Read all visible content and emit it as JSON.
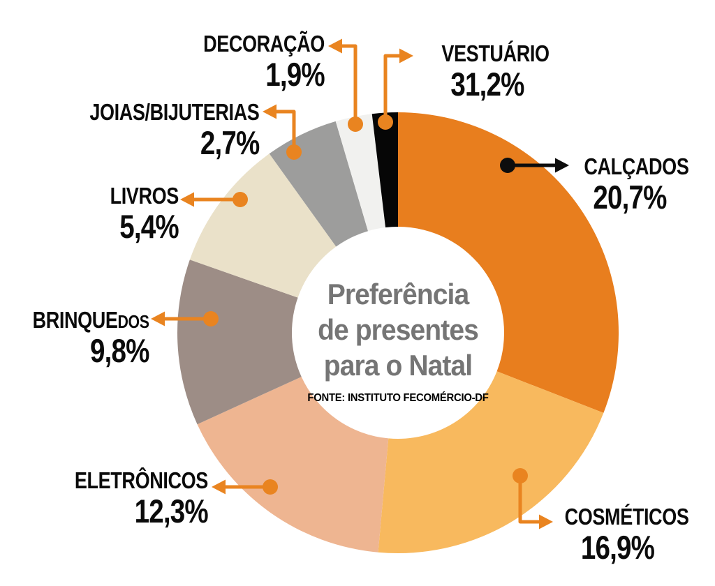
{
  "title": {
    "lines": [
      "Preferência",
      "de presentes",
      "para o Natal"
    ],
    "source": "FONTE: INSTITUTO FECOMÉRCIO-DF"
  },
  "chart_data": {
    "type": "pie",
    "subtype": "donut",
    "title": "Preferência de presentes para o Natal",
    "source": "FONTE: INSTITUTO FECOMÉRCIO-DF",
    "unit": "%",
    "start_angle_deg": 0,
    "direction": "clockwise",
    "segments": [
      {
        "label": "VESTUÁRIO",
        "value": 31.2,
        "display": "31,2%",
        "color": "#e87e1e"
      },
      {
        "label": "CALÇADOS",
        "value": 20.7,
        "display": "20,7%",
        "color": "#f8b95e"
      },
      {
        "label": "COSMÉTICOS",
        "value": 16.9,
        "display": "16,9%",
        "color": "#eeb591"
      },
      {
        "label": "ELETRÔNICOS",
        "value": 12.3,
        "display": "12,3%",
        "color": "#9d8d86"
      },
      {
        "label": "BRINQUEDOS",
        "value": 9.8,
        "display": "9,8%",
        "color": "#eae1c9"
      },
      {
        "label": "LIVROS",
        "value": 5.4,
        "display": "5,4%",
        "color": "#9d9d9c"
      },
      {
        "label": "JOIAS/BIJUTERIAS",
        "value": 2.7,
        "display": "2,7%",
        "color": "#f1f1ef"
      },
      {
        "label": "DECORAÇÃO",
        "value": 1.9,
        "display": "1,9%",
        "color": "#060606"
      }
    ]
  },
  "callouts": [
    {
      "name": "DECORAÇÃO",
      "name_small": "",
      "pct": "1,9%",
      "arrow_color": "#e98420"
    },
    {
      "name": "VESTUÁRIO",
      "name_small": "",
      "pct": "31,2%",
      "arrow_color": "#e98420"
    },
    {
      "name": "CALÇADOS",
      "name_small": "",
      "pct": "20,7%",
      "arrow_color": "#0d0d0d"
    },
    {
      "name": "COSMÉTICOS",
      "name_small": "",
      "pct": "16,9%",
      "arrow_color": "#e98420"
    },
    {
      "name": "ELETRÔNICOS",
      "name_small": "",
      "pct": "12,3%",
      "arrow_color": "#e98420"
    },
    {
      "name": "BRINQUE",
      "name_small": "DOS",
      "pct": "9,8%",
      "arrow_color": "#e98420"
    },
    {
      "name": "LIVROS",
      "name_small": "",
      "pct": "5,4%",
      "arrow_color": "#e98420"
    },
    {
      "name": "JOIAS/BIJUTERIAS",
      "name_small": "",
      "pct": "2,7%",
      "arrow_color": "#e98420"
    }
  ],
  "colors": {
    "accent_orange": "#e98420",
    "text_black": "#0b0b0b",
    "title_gray": "#757575",
    "background": "#ffffff"
  }
}
